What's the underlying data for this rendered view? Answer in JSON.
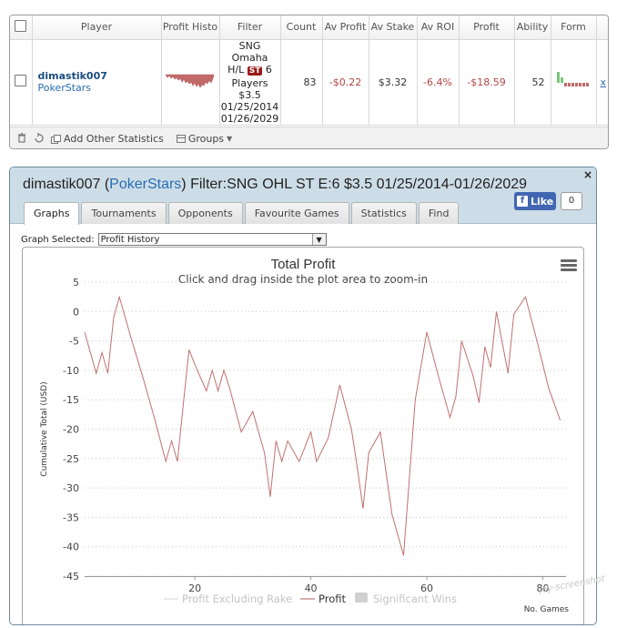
{
  "stats_table": {
    "headers": [
      "",
      "Player",
      "Profit Histo",
      "Filter",
      "Count",
      "Av Profit",
      "Av Stake",
      "Av ROI",
      "Profit",
      "Ability",
      "Form",
      ""
    ],
    "row": {
      "player_name": "dimastik007",
      "player_site": "PokerStars",
      "filter_line1": "SNG",
      "filter_line2": "Omaha",
      "filter_line3_pre": "H/L",
      "filter_badge": "ST",
      "filter_line3_post": "6",
      "filter_line4": "Players",
      "filter_line5": "$3.5",
      "filter_line6": "01/25/2014",
      "filter_line7": "01/26/2029",
      "count": "83",
      "av_profit": "-$0.22",
      "av_stake": "$3.32",
      "av_roi": "-6.4%",
      "profit": "-$18.59",
      "ability": "52",
      "remove": "x"
    },
    "toolbar": {
      "delete_icon": "trash-icon",
      "refresh_icon": "refresh-icon",
      "add_stats_label": "Add Other Statistics",
      "groups_label": "Groups"
    }
  },
  "graph_panel": {
    "title_pre": "dimastik007 (",
    "title_site": "PokerStars",
    "title_post": ") Filter:SNG OHL ST E:6 $3.5 01/25/2014-01/26/2029",
    "close": "×",
    "like_label": "Like",
    "like_count": "0",
    "tabs": [
      "Graphs",
      "Tournaments",
      "Opponents",
      "Favourite Games",
      "Statistics",
      "Find"
    ],
    "active_tab": "Graphs",
    "graph_selected_label": "Graph Selected:",
    "graph_selected_value": "Profit History"
  },
  "chart_data": {
    "type": "line",
    "title": "Total Profit",
    "subtitle": "Click and drag inside the plot area to zoom-in",
    "xlabel": "No. Games",
    "ylabel": "Cumulative Total (USD)",
    "xlim": [
      1,
      84
    ],
    "ylim": [
      -45,
      5
    ],
    "x_ticks": [
      20,
      40,
      60,
      80
    ],
    "y_ticks": [
      5,
      0,
      -5,
      -10,
      -15,
      -20,
      -25,
      -30,
      -35,
      -40,
      -45
    ],
    "grid": "horizontal dotted",
    "legend_position": "bottom",
    "legend": [
      {
        "name": "Profit Excluding Rake",
        "enabled": false
      },
      {
        "name": "Profit",
        "enabled": true
      },
      {
        "name": "Significant Wins",
        "enabled": false
      }
    ],
    "series": [
      {
        "name": "Profit",
        "color": "#c07070",
        "x": [
          1,
          3,
          4,
          5,
          6,
          7,
          9,
          11,
          13,
          15,
          16,
          17,
          18,
          19,
          20,
          22,
          23,
          24,
          25,
          26,
          28,
          30,
          32,
          33,
          34,
          35,
          36,
          38,
          40,
          41,
          43,
          45,
          47,
          48,
          49,
          50,
          52,
          54,
          56,
          58,
          60,
          62,
          64,
          65,
          66,
          68,
          69,
          70,
          71,
          72,
          74,
          75,
          77,
          79,
          81,
          83
        ],
        "values": [
          -3.5,
          -10.5,
          -7,
          -10.5,
          -1,
          2.5,
          -4.5,
          -11,
          -18,
          -25.5,
          -22,
          -25.5,
          -16,
          -6.5,
          -9,
          -13.5,
          -10,
          -13.5,
          -10,
          -13,
          -20.5,
          -17,
          -24,
          -31.5,
          -22,
          -25.5,
          -22,
          -25.5,
          -20.5,
          -25.5,
          -21.5,
          -12.5,
          -20,
          -26.5,
          -33.5,
          -24,
          -20.5,
          -34.5,
          -41.5,
          -15,
          -3.5,
          -11,
          -18,
          -14.5,
          -5,
          -11,
          -15.5,
          -6,
          -9.5,
          0,
          -10.5,
          -0.5,
          2.5,
          -5,
          -13,
          -18.5
        ]
      }
    ]
  }
}
